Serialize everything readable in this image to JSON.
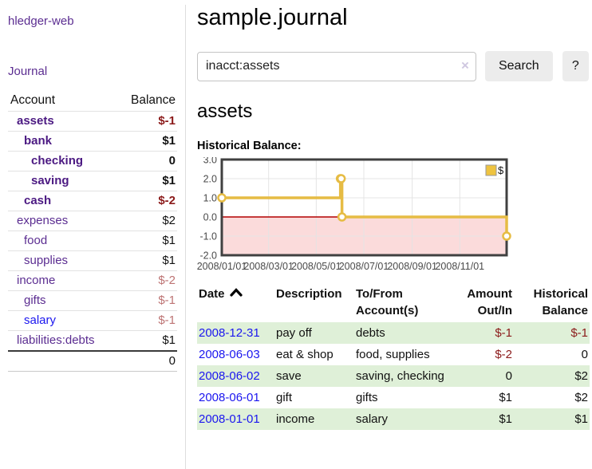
{
  "app": {
    "title": "hledger-web",
    "nav_journal_label": "Journal"
  },
  "sidebar": {
    "header": {
      "account": "Account",
      "balance": "Balance"
    },
    "accounts": [
      {
        "name": "assets",
        "indent": 0,
        "bold": true,
        "blue": false,
        "balance": "$-1",
        "balance_class": "bal-neg-strong"
      },
      {
        "name": "bank",
        "indent": 1,
        "bold": true,
        "blue": false,
        "balance": "$1",
        "balance_class": "bal-pos"
      },
      {
        "name": "checking",
        "indent": 2,
        "bold": true,
        "blue": false,
        "balance": "0",
        "balance_class": "bal-pos"
      },
      {
        "name": "saving",
        "indent": 2,
        "bold": true,
        "blue": false,
        "balance": "$1",
        "balance_class": "bal-pos"
      },
      {
        "name": "cash",
        "indent": 1,
        "bold": true,
        "blue": false,
        "balance": "$-2",
        "balance_class": "bal-neg-strong"
      },
      {
        "name": "expenses",
        "indent": 0,
        "bold": false,
        "blue": false,
        "balance": "$2",
        "balance_class": "bal-pos"
      },
      {
        "name": "food",
        "indent": 1,
        "bold": false,
        "blue": false,
        "balance": "$1",
        "balance_class": "bal-pos"
      },
      {
        "name": "supplies",
        "indent": 1,
        "bold": false,
        "blue": false,
        "balance": "$1",
        "balance_class": "bal-pos"
      },
      {
        "name": "income",
        "indent": 0,
        "bold": false,
        "blue": false,
        "balance": "$-2",
        "balance_class": "bal-neg-light"
      },
      {
        "name": "gifts",
        "indent": 1,
        "bold": false,
        "blue": false,
        "balance": "$-1",
        "balance_class": "bal-neg-light"
      },
      {
        "name": "salary",
        "indent": 1,
        "bold": false,
        "blue": true,
        "balance": "$-1",
        "balance_class": "bal-neg-light"
      },
      {
        "name": "liabilities:debts",
        "indent": 0,
        "bold": false,
        "blue": false,
        "balance": "$1",
        "balance_class": "bal-pos"
      }
    ],
    "total": "0"
  },
  "main": {
    "title": "sample.journal",
    "search": {
      "value": "inacct:assets",
      "clear_icon": "×",
      "button_label": "Search",
      "help_label": "?"
    },
    "account_heading": "assets",
    "chart_label": "Historical Balance:"
  },
  "chart_data": {
    "type": "line",
    "title": "Historical Balance:",
    "step": "after",
    "series": [
      {
        "name": "$",
        "points": [
          {
            "date": "2008-01-01",
            "value": 1
          },
          {
            "date": "2008-06-01",
            "value": 2
          },
          {
            "date": "2008-06-02",
            "value": 2
          },
          {
            "date": "2008-06-03",
            "value": 0
          },
          {
            "date": "2008-12-31",
            "value": -1
          }
        ]
      }
    ],
    "xlim": [
      "2008-01-01",
      "2008-12-31"
    ],
    "ylim": [
      -2,
      3
    ],
    "x_ticks": [
      {
        "label": "2008/01/01",
        "date": "2008-01-01"
      },
      {
        "label": "2008/03/01",
        "date": "2008-03-01"
      },
      {
        "label": "2008/05/01",
        "date": "2008-05-01"
      },
      {
        "label": "2008/07/01",
        "date": "2008-07-01"
      },
      {
        "label": "2008/09/01",
        "date": "2008-09-01"
      },
      {
        "label": "2008/11/01",
        "date": "2008-11-01"
      }
    ],
    "y_ticks": [
      {
        "label": "3.0",
        "value": 3
      },
      {
        "label": "2.0",
        "value": 2
      },
      {
        "label": "1.0",
        "value": 1
      },
      {
        "label": "0.0",
        "value": 0
      },
      {
        "label": "-1.0",
        "value": -1
      },
      {
        "label": "-2.0",
        "value": -2
      }
    ],
    "legend": {
      "label": "$",
      "position": "top-right"
    },
    "grid": true,
    "colors": {
      "line": "#e6bc44",
      "marker_fill": "#ffffff",
      "negative_region": "#fbdbdb",
      "zero_line": "#b30000",
      "gridline": "#e4e4e4",
      "frame": "#404040",
      "tick_text": "#4a4a4a",
      "legend_square": "#eec33f"
    }
  },
  "register": {
    "columns": [
      {
        "line1": "Date",
        "line2": "",
        "sortable": true
      },
      {
        "line1": "Description",
        "line2": "",
        "sortable": false
      },
      {
        "line1": "To/From",
        "line2": "Account(s)",
        "sortable": false
      },
      {
        "line1": "Amount",
        "line2": "Out/In",
        "sortable": false
      },
      {
        "line1": "Historical",
        "line2": "Balance",
        "sortable": false
      }
    ],
    "rows": [
      {
        "date": "2008-12-31",
        "description": "pay off",
        "accounts": "debts",
        "amount": "$-1",
        "amount_negative": true,
        "balance": "$-1",
        "balance_negative": true
      },
      {
        "date": "2008-06-03",
        "description": "eat & shop",
        "accounts": "food, supplies",
        "amount": "$-2",
        "amount_negative": true,
        "balance": "0",
        "balance_negative": false
      },
      {
        "date": "2008-06-02",
        "description": "save",
        "accounts": "saving, checking",
        "amount": "0",
        "amount_negative": false,
        "balance": "$2",
        "balance_negative": false
      },
      {
        "date": "2008-06-01",
        "description": "gift",
        "accounts": "gifts",
        "amount": "$1",
        "amount_negative": false,
        "balance": "$2",
        "balance_negative": false
      },
      {
        "date": "2008-01-01",
        "description": "income",
        "accounts": "salary",
        "amount": "$1",
        "amount_negative": false,
        "balance": "$1",
        "balance_negative": false
      }
    ]
  }
}
